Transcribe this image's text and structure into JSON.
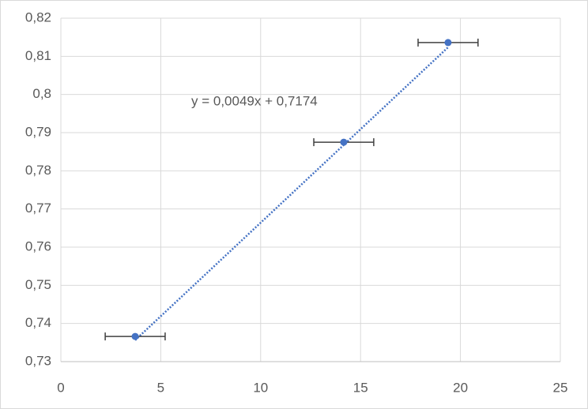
{
  "chart_data": {
    "type": "scatter",
    "series": [
      {
        "color": "#4472c4",
        "x": [
          3.72,
          14.16,
          19.38
        ],
        "values": [
          0.7366,
          0.7875,
          0.8136
        ],
        "x_error": [
          1.5,
          1.5,
          1.5
        ],
        "error_color": "#404040"
      }
    ],
    "trendline": {
      "slope": 0.0049,
      "intercept": 0.7174,
      "label": "y = 0,0049x + 0,7174",
      "color": "#4472c4",
      "style": "dotted"
    },
    "xlim": [
      0,
      25
    ],
    "xticks": [
      0,
      5,
      10,
      15,
      20,
      25
    ],
    "ylim": [
      0.73,
      0.82
    ],
    "yticks": [
      {
        "value": 0.73,
        "label": "0,73"
      },
      {
        "value": 0.74,
        "label": "0,74"
      },
      {
        "value": 0.75,
        "label": "0,75"
      },
      {
        "value": 0.76,
        "label": "0,76"
      },
      {
        "value": 0.77,
        "label": "0,77"
      },
      {
        "value": 0.78,
        "label": "0,78"
      },
      {
        "value": 0.79,
        "label": "0,79"
      },
      {
        "value": 0.8,
        "label": "0,8"
      },
      {
        "value": 0.81,
        "label": "0,81"
      },
      {
        "value": 0.82,
        "label": "0,82"
      }
    ],
    "grid": true
  }
}
